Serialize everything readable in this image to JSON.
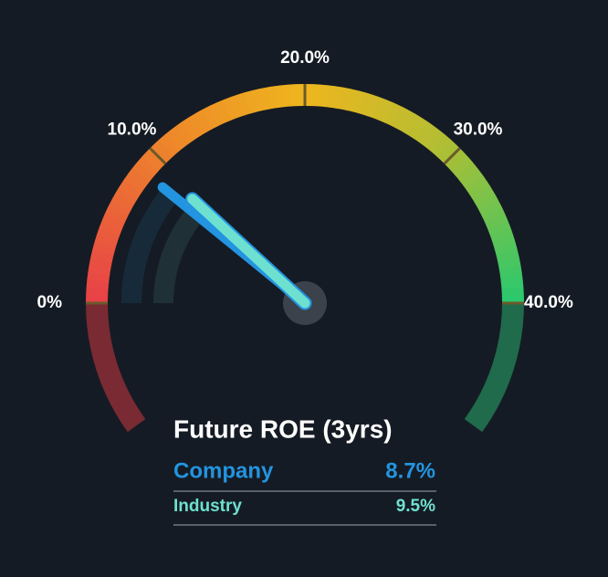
{
  "chart_data": {
    "type": "gauge",
    "title": "Future ROE (3yrs)",
    "xlim": [
      0,
      40
    ],
    "xticks": [
      {
        "value": 0,
        "label": "0%"
      },
      {
        "value": 10,
        "label": "10.0%"
      },
      {
        "value": 20,
        "label": "20.0%"
      },
      {
        "value": 30,
        "label": "30.0%"
      },
      {
        "value": 40,
        "label": "40.0%"
      }
    ],
    "series": [
      {
        "name": "Company",
        "color": "#2394df",
        "values": [
          8.7
        ],
        "value_labels": [
          "8.7%"
        ]
      },
      {
        "name": "Industry",
        "color": "#6ee0d0",
        "values": [
          9.5
        ],
        "value_labels": [
          "9.5%"
        ]
      }
    ]
  }
}
